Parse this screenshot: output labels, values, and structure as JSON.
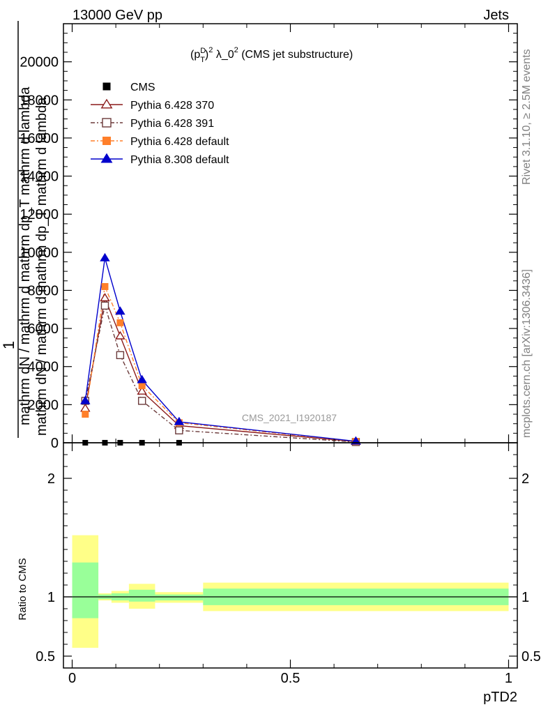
{
  "header": {
    "left": "13000 GeV pp",
    "right": "Jets"
  },
  "side": {
    "top": "Rivet 3.1.10, ≥ 2.5M events",
    "bottom": "mcplots.cern.ch [arXiv:1306.3436]"
  },
  "watermark": "CMS_2021_I1920187",
  "chart_data": {
    "type": "line",
    "title": "(p_T^D)^2 λ_0^2 (CMS jet substructure)",
    "title_parts": {
      "a": "(p",
      "b": "D",
      "c": "T",
      "d": ")",
      "e": "2",
      "f": " λ_0",
      "g": "2",
      "h": " (CMS jet substructure)"
    },
    "xlabel": "pTD2",
    "ylabel_top": "1",
    "ylabel_numerator_main": "mathrm dN / mathrm d mathrm dp_T mathrm d lambda",
    "ylabel_denominator_main": "mathrm dN / mathrm d mathrm dp_T mathrm d lambda",
    "ylabel_ratio": "Ratio to CMS",
    "xlim": [
      -0.02,
      1.02
    ],
    "ylim": [
      0,
      22000
    ],
    "ratio_ylim": [
      0.4,
      2.3
    ],
    "x_ticks": [
      0,
      0.5,
      1
    ],
    "x_tick_labels": [
      "0",
      "0.5",
      "1"
    ],
    "y_ticks": [
      0,
      2000,
      4000,
      6000,
      8000,
      10000,
      12000,
      14000,
      16000,
      18000,
      20000
    ],
    "y_tick_labels": [
      "0",
      "2000",
      "4000",
      "6000",
      "8000",
      "10000",
      "12000",
      "14000",
      "16000",
      "18000",
      "20000"
    ],
    "ratio_ticks": [
      0.5,
      1,
      2
    ],
    "ratio_tick_labels": [
      "0.5",
      "1",
      "2"
    ],
    "bin_edges": [
      0.0,
      0.06,
      0.09,
      0.13,
      0.19,
      0.3,
      1.0
    ],
    "x": [
      0.03,
      0.075,
      0.11,
      0.16,
      0.245,
      0.65
    ],
    "series": [
      {
        "name": "CMS",
        "color": "#000000",
        "marker": "square-filled",
        "dash": "",
        "values": [
          2,
          2,
          2,
          2,
          2,
          2
        ]
      },
      {
        "name": "Pythia 6.428 370",
        "color": "#8b1a1a",
        "marker": "triangle-open",
        "dash": "",
        "values": [
          1800,
          7600,
          5600,
          2700,
          900,
          60
        ]
      },
      {
        "name": "Pythia 6.428 391",
        "color": "#6b3a3a",
        "marker": "square-open",
        "dash": "6,3,2,3",
        "values": [
          2200,
          7200,
          4600,
          2200,
          650,
          40
        ]
      },
      {
        "name": "Pythia 6.428 default",
        "color": "#ff7f2a",
        "marker": "square-filled",
        "dash": "6,3,2,3",
        "values": [
          1500,
          8200,
          6300,
          3000,
          1050,
          70
        ]
      },
      {
        "name": "Pythia 8.308 default",
        "color": "#0000cc",
        "marker": "triangle-filled",
        "dash": "",
        "values": [
          2200,
          9700,
          6900,
          3300,
          1100,
          80
        ]
      }
    ],
    "ratio_bands": {
      "yellow": [
        [
          0.57,
          1.52
        ],
        [
          0.97,
          1.03
        ],
        [
          0.95,
          1.05
        ],
        [
          0.9,
          1.11
        ],
        [
          0.95,
          1.04
        ],
        [
          0.88,
          1.12
        ]
      ],
      "green": [
        [
          0.82,
          1.29
        ],
        [
          0.98,
          1.02
        ],
        [
          0.97,
          1.03
        ],
        [
          0.96,
          1.06
        ],
        [
          0.97,
          1.02
        ],
        [
          0.93,
          1.07
        ]
      ]
    },
    "legend_position": "top-left",
    "band_colors": {
      "yellow": "#ffff88",
      "green": "#99ff99"
    }
  }
}
